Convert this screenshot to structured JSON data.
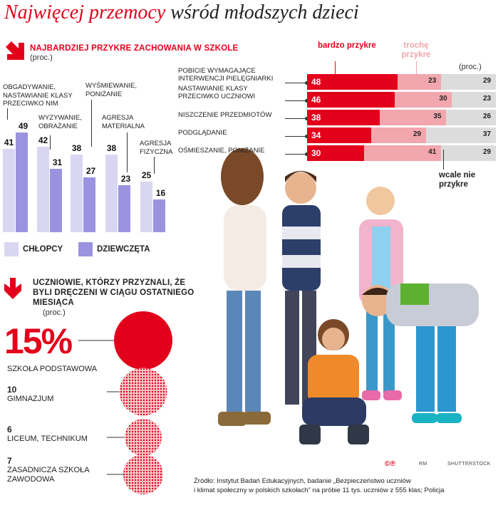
{
  "title_red": "Najwięcej przemocy",
  "title_rest": " wśród młodszych dzieci",
  "chart_data": [
    {
      "type": "bar",
      "title": "NAJBARDZIEJ PRZYKRE ZACHOWANIA W SZKOLE",
      "subtitle": "(proc.)",
      "categories": [
        "OBGADYWANIE, NASTAWIANIE KLASY PRZECIWKO NIM",
        "WYZYWANIE, OBRAŻANIE",
        "WYŚMIEWANIE, PONIŻANIE",
        "AGRESJA MATERIALNA",
        "AGRESJA FIZYCZNA"
      ],
      "series": [
        {
          "name": "CHŁOPCY",
          "values": [
            41,
            42,
            38,
            38,
            25
          ],
          "color": "#d9d6f2"
        },
        {
          "name": "DZIEWCZĘTA",
          "values": [
            49,
            31,
            27,
            23,
            16
          ],
          "color": "#9b93e0"
        }
      ],
      "ylim": [
        0,
        55
      ]
    },
    {
      "type": "bar",
      "orientation": "horizontal-stacked",
      "subtitle": "(proc.)",
      "categories": [
        "POBICIE WYMAGAJĄCE INTERWENCJI PIELĘGNIARKI",
        "NASTAWIANIE KLASY PRZECIWKO UCZNIOWI",
        "NISZCZENIE PRZEDMIOTÓW",
        "PODGLĄDANIE",
        "OŚMIESZANIE, PONIŻANIE"
      ],
      "series": [
        {
          "name": "bardzo przykre",
          "values": [
            48,
            46,
            38,
            34,
            30
          ],
          "color": "#e3001b"
        },
        {
          "name": "trochę przykre",
          "values": [
            23,
            30,
            35,
            29,
            41
          ],
          "color": "#f2a6ad"
        },
        {
          "name": "wcale nie przykre",
          "values": [
            29,
            23,
            26,
            37,
            29
          ],
          "color": "#dcdcdc"
        }
      ]
    },
    {
      "type": "bar",
      "title": "UCZNIOWIE, KTÓRZY PRZYZNALI, ŻE BYLI DRĘCZENI W CIĄGU OSTATNIEGO MIESIĄCA",
      "subtitle": "(proc.)",
      "categories": [
        "SZKOŁA PODSTAWOWA",
        "GIMNAZJUM",
        "LICEUM, TECHNIKUM",
        "ZASADNICZA SZKOŁA ZAWODOWA"
      ],
      "values": [
        15,
        10,
        6,
        7
      ],
      "labels": [
        "15%",
        "10",
        "6",
        "7"
      ],
      "color": "#e3001b"
    }
  ],
  "footer": {
    "line1": "Źródło: Instytut Badań Edukacyjnych, badanie „Bezpieczeństwo uczniów",
    "line2": "i klimat społeczny w polskich szkołach” na próbie 11 tys. uczniów z 555 klas; Policja",
    "credit1": "©℗",
    "credit2": "RM",
    "credit3": "SHUTTERSTOCK"
  }
}
